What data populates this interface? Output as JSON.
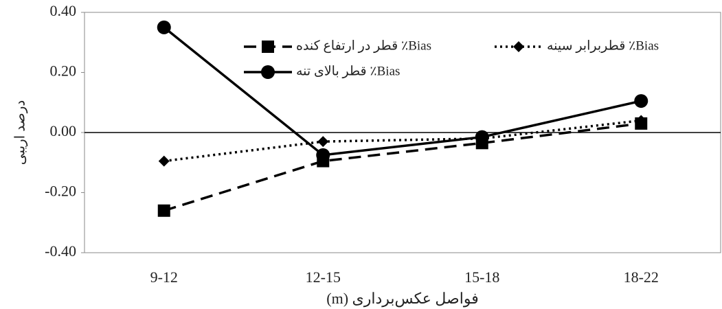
{
  "chart_data": {
    "type": "line",
    "categories": [
      "9-12",
      "12-15",
      "15-18",
      "18-22"
    ],
    "x_label": "فواصل عکس‌برداری (m)",
    "y_label": "درصد اریبی",
    "ylim": [
      -0.4,
      0.4
    ],
    "yticks": [
      {
        "value": -0.4,
        "label": "-0.40"
      },
      {
        "value": -0.2,
        "label": "-0.20"
      },
      {
        "value": 0,
        "label": "0.00"
      },
      {
        "value": 0.2,
        "label": "0.20"
      },
      {
        "value": 0.4,
        "label": "0.40"
      }
    ],
    "series": [
      {
        "name": "قطر در ارتفاع کنده ٪Bias",
        "color": "#000000",
        "dash": "dashed",
        "marker": "square",
        "values": [
          -0.26,
          -0.095,
          -0.035,
          0.03
        ]
      },
      {
        "name": "قطربرابر سینه ٪Bias",
        "color": "#000000",
        "dash": "dotted",
        "marker": "diamond",
        "values": [
          -0.095,
          -0.03,
          -0.02,
          0.04
        ]
      },
      {
        "name": "قطر بالای تنه ٪Bias",
        "color": "#000000",
        "dash": "solid",
        "marker": "circle",
        "values": [
          0.35,
          -0.075,
          -0.015,
          0.105
        ]
      }
    ]
  }
}
